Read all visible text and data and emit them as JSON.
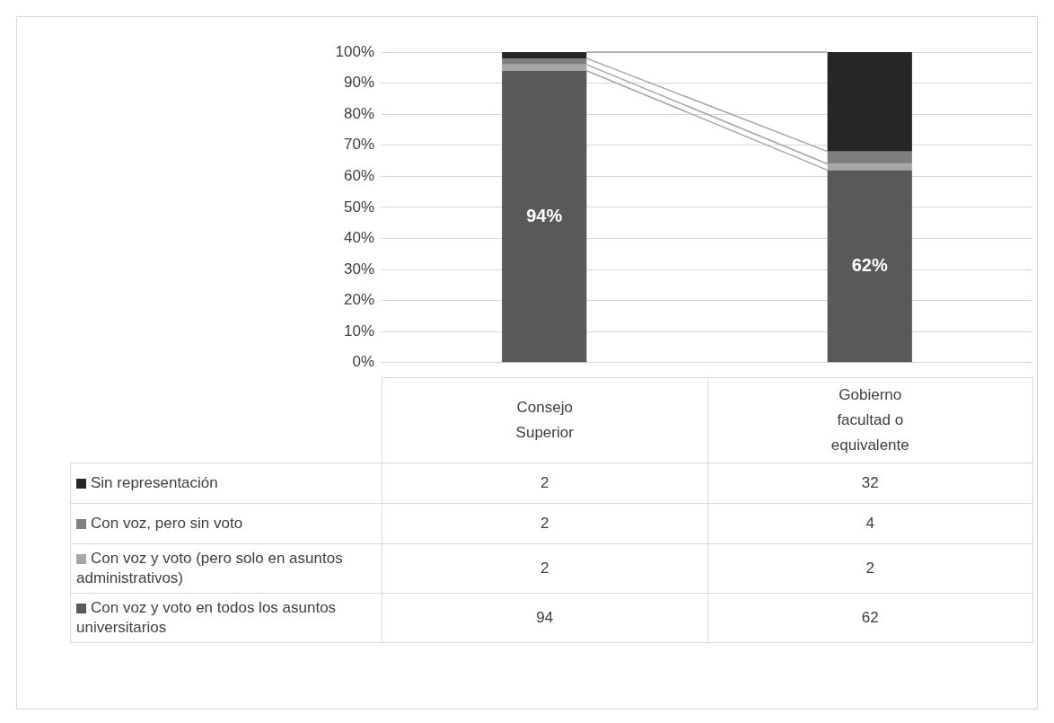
{
  "chart_data": {
    "type": "bar",
    "stacked": true,
    "categories": [
      "Consejo Superior",
      "Gobierno facultad o equivalente"
    ],
    "series": [
      {
        "name": "Con voz y voto en todos los asuntos universitarios",
        "color": "#595959",
        "values": [
          94,
          62
        ]
      },
      {
        "name": "Con voz y voto (pero solo en asuntos administrativos)",
        "color": "#a6a6a6",
        "values": [
          2,
          2
        ]
      },
      {
        "name": "Con voz, pero sin voto",
        "color": "#7f7f7f",
        "values": [
          2,
          4
        ]
      },
      {
        "name": "Sin representación",
        "color": "#262626",
        "values": [
          2,
          32
        ]
      }
    ],
    "ylim": [
      0,
      100
    ],
    "yticks": [
      {
        "value": 0,
        "label": "0%"
      },
      {
        "value": 10,
        "label": "10%"
      },
      {
        "value": 20,
        "label": "20%"
      },
      {
        "value": 30,
        "label": "30%"
      },
      {
        "value": 40,
        "label": "40%"
      },
      {
        "value": 50,
        "label": "50%"
      },
      {
        "value": 60,
        "label": "60%"
      },
      {
        "value": 70,
        "label": "70%"
      },
      {
        "value": 80,
        "label": "80%"
      },
      {
        "value": 90,
        "label": "90%"
      },
      {
        "value": 100,
        "label": "100%"
      }
    ],
    "grid": "y",
    "legend": "bottom",
    "data_labels": true,
    "annotations": [
      "94%",
      "62%"
    ]
  }
}
